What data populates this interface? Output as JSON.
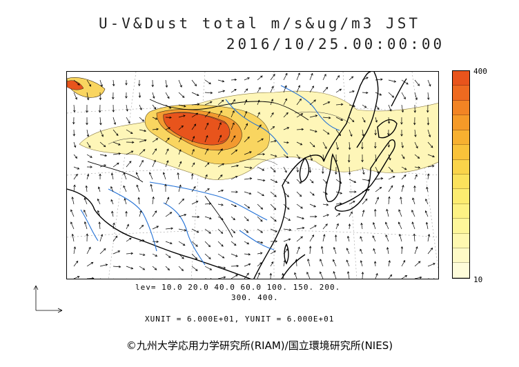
{
  "title": {
    "line1": "U-V&Dust total m/s&ug/m3 JST",
    "line2": "2016/10/25.00:00:00"
  },
  "colorbar": {
    "max_label": "400",
    "min_label": "10",
    "steps": [
      "#e8541c",
      "#ee6a20",
      "#f28424",
      "#f59a28",
      "#f7b030",
      "#f9c23a",
      "#fad44a",
      "#fbe25c",
      "#fcec70",
      "#fdf284",
      "#fdf69a",
      "#fef8b0",
      "#fefac6",
      "#fefcda"
    ]
  },
  "legend": {
    "levels_line1": "lev= 10.0 20.0 40.0 60.0 100. 150. 200.",
    "levels_line2": "300. 400.",
    "units": "XUNIT = 6.000E+01, YUNIT = 6.000E+01"
  },
  "copyright": "©九州大学応用力学研究所(RIAM)/国立環境研究所(NIES)",
  "map": {
    "coastline_color": "#000000",
    "river_color": "#1f6fd6",
    "dust_colors": {
      "light": "#fef6b8",
      "mid": "#f9d560",
      "strong": "#f39a30",
      "peak": "#e8541c"
    }
  }
}
